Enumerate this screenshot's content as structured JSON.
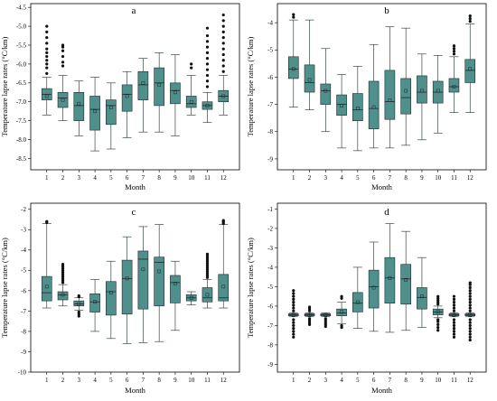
{
  "chart_data": [
    {
      "panel": "a",
      "type": "box",
      "title": "a",
      "xlabel": "Month",
      "ylabel": "Temperature lapse rates (°C/km)",
      "categories": [
        "1",
        "2",
        "3",
        "4",
        "5",
        "6",
        "7",
        "8",
        "9",
        "10",
        "11",
        "12"
      ],
      "ylim": [
        -8.8,
        -4.4
      ],
      "yticks": [
        -8.5,
        -8.0,
        -7.5,
        -7.0,
        -6.5,
        -6.0,
        -5.5,
        -5.0,
        -4.5
      ],
      "ytick_labels": [
        "-8.5",
        "-8.0",
        "-7.5",
        "-7.0",
        "-6.5",
        "-6.0",
        "-5.5",
        "-5.0",
        "-4.5"
      ],
      "boxes": [
        {
          "month": "1",
          "whislo": -7.35,
          "q1": -6.95,
          "med": -6.8,
          "q3": -6.65,
          "whishi": -6.35,
          "mean": -6.85,
          "fliers": [
            -6.25,
            -6.1,
            -6.0,
            -5.9,
            -5.8,
            -5.7,
            -5.6,
            -5.45,
            -5.3,
            -5.15,
            -5.0
          ]
        },
        {
          "month": "2",
          "whislo": -7.5,
          "q1": -7.15,
          "med": -6.9,
          "q3": -6.75,
          "whishi": -6.3,
          "mean": -6.95,
          "fliers": [
            -6.05,
            -5.95,
            -5.8,
            -5.65,
            -5.55,
            -5.5
          ]
        },
        {
          "month": "3",
          "whislo": -7.9,
          "q1": -7.5,
          "med": -7.1,
          "q3": -6.75,
          "whishi": -6.45,
          "mean": -7.05,
          "fliers": []
        },
        {
          "month": "4",
          "whislo": -8.3,
          "q1": -7.75,
          "med": -7.2,
          "q3": -6.85,
          "whishi": -6.35,
          "mean": -7.25,
          "fliers": []
        },
        {
          "month": "5",
          "whislo": -8.25,
          "q1": -7.6,
          "med": -7.1,
          "q3": -6.95,
          "whishi": -6.5,
          "mean": -7.15,
          "fliers": []
        },
        {
          "month": "6",
          "whislo": -7.95,
          "q1": -7.25,
          "med": -6.8,
          "q3": -6.55,
          "whishi": -6.2,
          "mean": -6.85,
          "fliers": []
        },
        {
          "month": "7",
          "whislo": -7.8,
          "q1": -6.95,
          "med": -6.55,
          "q3": -6.2,
          "whishi": -5.85,
          "mean": -6.5,
          "fliers": []
        },
        {
          "month": "8",
          "whislo": -7.8,
          "q1": -7.1,
          "med": -6.5,
          "q3": -6.1,
          "whishi": -5.7,
          "mean": -6.55,
          "fliers": []
        },
        {
          "month": "9",
          "whislo": -7.9,
          "q1": -7.05,
          "med": -6.7,
          "q3": -6.5,
          "whishi": -5.75,
          "mean": -6.75,
          "fliers": []
        },
        {
          "month": "10",
          "whislo": -7.35,
          "q1": -7.15,
          "med": -7.05,
          "q3": -6.85,
          "whishi": -6.3,
          "mean": -7.0,
          "fliers": [
            -6.1,
            -6.0
          ]
        },
        {
          "month": "11",
          "whislo": -7.55,
          "q1": -7.2,
          "med": -7.1,
          "q3": -7.0,
          "whishi": -6.75,
          "mean": -7.1,
          "fliers": [
            -6.6,
            -6.45,
            -6.3,
            -6.15,
            -6.0,
            -5.85,
            -5.7,
            -5.55,
            -5.4,
            -5.25,
            -5.05
          ]
        },
        {
          "month": "12",
          "whislo": -7.35,
          "q1": -7.0,
          "med": -6.85,
          "q3": -6.7,
          "whishi": -6.3,
          "mean": -6.85,
          "fliers": [
            -6.2,
            -6.05,
            -5.9,
            -5.75,
            -5.6,
            -5.45,
            -5.3,
            -5.15,
            -5.0,
            -4.85,
            -4.7
          ]
        }
      ]
    },
    {
      "panel": "b",
      "type": "box",
      "title": "b",
      "xlabel": "Month",
      "ylabel": "Temperature lapse rates (°C/km)",
      "categories": [
        "1",
        "2",
        "3",
        "4",
        "5",
        "6",
        "7",
        "8",
        "9",
        "10",
        "11",
        "12"
      ],
      "ylim": [
        -9.4,
        -3.3
      ],
      "yticks": [
        -9,
        -8,
        -7,
        -6,
        -5,
        -4
      ],
      "ytick_labels": [
        "-9",
        "-8",
        "-7",
        "-6",
        "-5",
        "-4"
      ],
      "boxes": [
        {
          "month": "1",
          "whislo": -7.1,
          "q1": -6.05,
          "med": -5.7,
          "q3": -5.25,
          "whishi": -3.9,
          "mean": -5.7,
          "fliers": [
            -3.8,
            -3.7
          ]
        },
        {
          "month": "2",
          "whislo": -7.2,
          "q1": -6.55,
          "med": -6.2,
          "q3": -5.55,
          "whishi": -3.9,
          "mean": -6.1,
          "fliers": []
        },
        {
          "month": "3",
          "whislo": -8.0,
          "q1": -7.0,
          "med": -6.5,
          "q3": -6.25,
          "whishi": -4.95,
          "mean": -6.5,
          "fliers": []
        },
        {
          "month": "4",
          "whislo": -8.6,
          "q1": -7.4,
          "med": -7.0,
          "q3": -6.65,
          "whishi": -5.9,
          "mean": -7.05,
          "fliers": []
        },
        {
          "month": "5",
          "whislo": -8.7,
          "q1": -7.6,
          "med": -7.2,
          "q3": -6.6,
          "whishi": -5.6,
          "mean": -7.15,
          "fliers": []
        },
        {
          "month": "6",
          "whislo": -8.6,
          "q1": -7.9,
          "med": -7.15,
          "q3": -6.15,
          "whishi": -4.8,
          "mean": -7.1,
          "fliers": []
        },
        {
          "month": "7",
          "whislo": -8.6,
          "q1": -7.55,
          "med": -6.9,
          "q3": -5.75,
          "whishi": -4.15,
          "mean": -6.85,
          "fliers": []
        },
        {
          "month": "8",
          "whislo": -8.5,
          "q1": -7.35,
          "med": -6.75,
          "q3": -6.05,
          "whishi": -4.2,
          "mean": -6.5,
          "fliers": []
        },
        {
          "month": "9",
          "whislo": -8.3,
          "q1": -6.95,
          "med": -6.55,
          "q3": -5.95,
          "whishi": -5.15,
          "mean": -6.5,
          "fliers": []
        },
        {
          "month": "10",
          "whislo": -8.05,
          "q1": -6.95,
          "med": -6.55,
          "q3": -6.15,
          "whishi": -5.2,
          "mean": -6.5,
          "fliers": []
        },
        {
          "month": "11",
          "whislo": -7.3,
          "q1": -6.55,
          "med": -6.35,
          "q3": -6.05,
          "whishi": -5.25,
          "mean": -6.35,
          "fliers": [
            -5.15,
            -5.05,
            -4.95,
            -4.85
          ]
        },
        {
          "month": "12",
          "whislo": -7.3,
          "q1": -6.2,
          "med": -5.75,
          "q3": -5.35,
          "whishi": -4.05,
          "mean": -5.7,
          "fliers": [
            -3.95,
            -3.85,
            -3.75
          ]
        }
      ]
    },
    {
      "panel": "c",
      "type": "box",
      "title": "c",
      "xlabel": "Month",
      "ylabel": "Temperature lapse rates (°C/km)",
      "categories": [
        "1",
        "2",
        "3",
        "4",
        "5",
        "6",
        "7",
        "8",
        "9",
        "10",
        "11",
        "12"
      ],
      "ylim": [
        -10,
        -1.7
      ],
      "yticks": [
        -10,
        -9,
        -8,
        -7,
        -6,
        -5,
        -4,
        -3,
        -2
      ],
      "ytick_labels": [
        "-10",
        "-9",
        "-8",
        "-7",
        "-6",
        "-5",
        "-4",
        "-3",
        "-2"
      ],
      "boxes": [
        {
          "month": "1",
          "whislo": -6.85,
          "q1": -6.5,
          "med": -6.1,
          "q3": -5.3,
          "whishi": -2.7,
          "mean": -5.8,
          "fliers": [
            -2.65,
            -2.6
          ]
        },
        {
          "month": "2",
          "whislo": -6.75,
          "q1": -6.45,
          "med": -6.2,
          "q3": -6.05,
          "whishi": -5.7,
          "mean": -6.2,
          "fliers": [
            -5.6,
            -5.5,
            -5.4,
            -5.3,
            -5.2,
            -5.1,
            -5.0,
            -4.9,
            -4.8,
            -4.7
          ]
        },
        {
          "month": "3",
          "whislo": -6.95,
          "q1": -6.75,
          "med": -6.65,
          "q3": -6.5,
          "whishi": -6.35,
          "mean": -6.65,
          "fliers": [
            -7.05,
            -7.15,
            -7.25,
            -6.3,
            -6.25
          ]
        },
        {
          "month": "4",
          "whislo": -8.0,
          "q1": -7.05,
          "med": -6.55,
          "q3": -6.15,
          "whishi": -5.45,
          "mean": -6.55,
          "fliers": []
        },
        {
          "month": "5",
          "whislo": -8.35,
          "q1": -7.2,
          "med": -6.05,
          "q3": -5.55,
          "whishi": -4.55,
          "mean": -6.1,
          "fliers": []
        },
        {
          "month": "6",
          "whislo": -8.6,
          "q1": -7.15,
          "med": -5.4,
          "q3": -4.5,
          "whishi": -3.35,
          "mean": -5.4,
          "fliers": []
        },
        {
          "month": "7",
          "whislo": -8.55,
          "q1": -6.9,
          "med": -4.45,
          "q3": -4.05,
          "whishi": -2.85,
          "mean": -4.95,
          "fliers": []
        },
        {
          "month": "8",
          "whislo": -8.5,
          "q1": -6.75,
          "med": -4.6,
          "q3": -4.35,
          "whishi": -2.75,
          "mean": -5.05,
          "fliers": []
        },
        {
          "month": "9",
          "whislo": -7.95,
          "q1": -6.6,
          "med": -5.6,
          "q3": -5.25,
          "whishi": -4.55,
          "mean": -5.65,
          "fliers": []
        },
        {
          "month": "10",
          "whislo": -6.7,
          "q1": -6.5,
          "med": -6.35,
          "q3": -6.2,
          "whishi": -6.05,
          "mean": -6.35,
          "fliers": []
        },
        {
          "month": "11",
          "whislo": -6.85,
          "q1": -6.55,
          "med": -6.35,
          "q3": -5.85,
          "whishi": -5.45,
          "mean": -6.2,
          "fliers": [
            -5.35,
            -5.25,
            -5.15,
            -5.05,
            -4.95,
            -4.85,
            -4.75,
            -4.65,
            -4.55,
            -4.45,
            -4.35,
            -4.25,
            -4.2
          ]
        },
        {
          "month": "12",
          "whislo": -6.85,
          "q1": -6.5,
          "med": -6.35,
          "q3": -5.2,
          "whishi": -2.75,
          "mean": -5.8,
          "fliers": [
            -2.7,
            -2.65,
            -2.6,
            -2.55
          ]
        }
      ]
    },
    {
      "panel": "d",
      "type": "box",
      "title": "d",
      "xlabel": "Month",
      "ylabel": "Temperature lapse rates (°C/km)",
      "categories": [
        "1",
        "2",
        "3",
        "4",
        "5",
        "6",
        "7",
        "8",
        "9",
        "10",
        "11",
        "12"
      ],
      "ylim": [
        -9.4,
        -0.7
      ],
      "yticks": [
        -9,
        -8,
        -7,
        -6,
        -5,
        -4,
        -3,
        -2,
        -1
      ],
      "ytick_labels": [
        "-9",
        "-8",
        "-7",
        "-6",
        "-5",
        "-4",
        "-3",
        "-2",
        "-1"
      ],
      "boxes": [
        {
          "month": "1",
          "whislo": -6.55,
          "q1": -6.5,
          "med": -6.45,
          "q3": -6.4,
          "whishi": -6.35,
          "mean": -6.45,
          "fliers": [
            -6.7,
            -6.85,
            -7.0,
            -7.15,
            -7.3,
            -7.45,
            -7.6,
            -6.25,
            -6.1,
            -5.95,
            -5.8,
            -5.65,
            -5.5,
            -5.35,
            -5.2
          ]
        },
        {
          "month": "2",
          "whislo": -6.55,
          "q1": -6.5,
          "med": -6.45,
          "q3": -6.4,
          "whishi": -6.35,
          "mean": -6.45,
          "fliers": [
            -6.65,
            -6.75,
            -6.85,
            -6.95,
            -6.25,
            -6.15,
            -6.05
          ]
        },
        {
          "month": "3",
          "whislo": -6.55,
          "q1": -6.5,
          "med": -6.45,
          "q3": -6.4,
          "whishi": -6.35,
          "mean": -6.45,
          "fliers": [
            -6.65,
            -6.75,
            -6.85,
            -6.95,
            -7.05
          ]
        },
        {
          "month": "4",
          "whislo": -6.9,
          "q1": -6.5,
          "med": -6.35,
          "q3": -6.15,
          "whishi": -5.8,
          "mean": -6.3,
          "fliers": [
            -7.0,
            -7.1,
            -5.6,
            -5.5
          ]
        },
        {
          "month": "5",
          "whislo": -7.15,
          "q1": -6.3,
          "med": -5.85,
          "q3": -5.3,
          "whishi": -4.0,
          "mean": -5.8,
          "fliers": []
        },
        {
          "month": "6",
          "whislo": -7.3,
          "q1": -6.1,
          "med": -5.0,
          "q3": -4.15,
          "whishi": -2.7,
          "mean": -5.05,
          "fliers": []
        },
        {
          "month": "7",
          "whislo": -7.35,
          "q1": -5.85,
          "med": -4.55,
          "q3": -3.5,
          "whishi": -1.75,
          "mean": -4.55,
          "fliers": []
        },
        {
          "month": "8",
          "whislo": -7.25,
          "q1": -5.9,
          "med": -4.6,
          "q3": -3.85,
          "whishi": -2.15,
          "mean": -4.65,
          "fliers": []
        },
        {
          "month": "9",
          "whislo": -7.1,
          "q1": -6.15,
          "med": -5.55,
          "q3": -5.05,
          "whishi": -3.5,
          "mean": -5.5,
          "fliers": []
        },
        {
          "month": "10",
          "whislo": -6.6,
          "q1": -6.45,
          "med": -6.3,
          "q3": -6.15,
          "whishi": -6.0,
          "mean": -6.3,
          "fliers": [
            -6.7,
            -6.8,
            -6.95,
            -7.1,
            -7.25,
            -5.9,
            -5.8,
            -5.7,
            -5.6,
            -5.5
          ]
        },
        {
          "month": "11",
          "whislo": -6.55,
          "q1": -6.5,
          "med": -6.45,
          "q3": -6.4,
          "whishi": -6.35,
          "mean": -6.45,
          "fliers": [
            -6.7,
            -6.85,
            -7.0,
            -7.15,
            -7.3,
            -7.45,
            -7.6,
            -6.25,
            -6.1,
            -5.95,
            -5.8,
            -5.65,
            -5.5
          ]
        },
        {
          "month": "12",
          "whislo": -6.55,
          "q1": -6.5,
          "med": -6.45,
          "q3": -6.4,
          "whishi": -6.35,
          "mean": -6.45,
          "fliers": [
            -6.7,
            -6.85,
            -7.0,
            -7.15,
            -7.3,
            -7.45,
            -7.6,
            -7.75,
            -6.25,
            -6.1,
            -5.95,
            -5.8,
            -5.65,
            -5.5,
            -5.35,
            -5.2,
            -5.05,
            -4.9,
            -4.8
          ]
        }
      ]
    }
  ]
}
